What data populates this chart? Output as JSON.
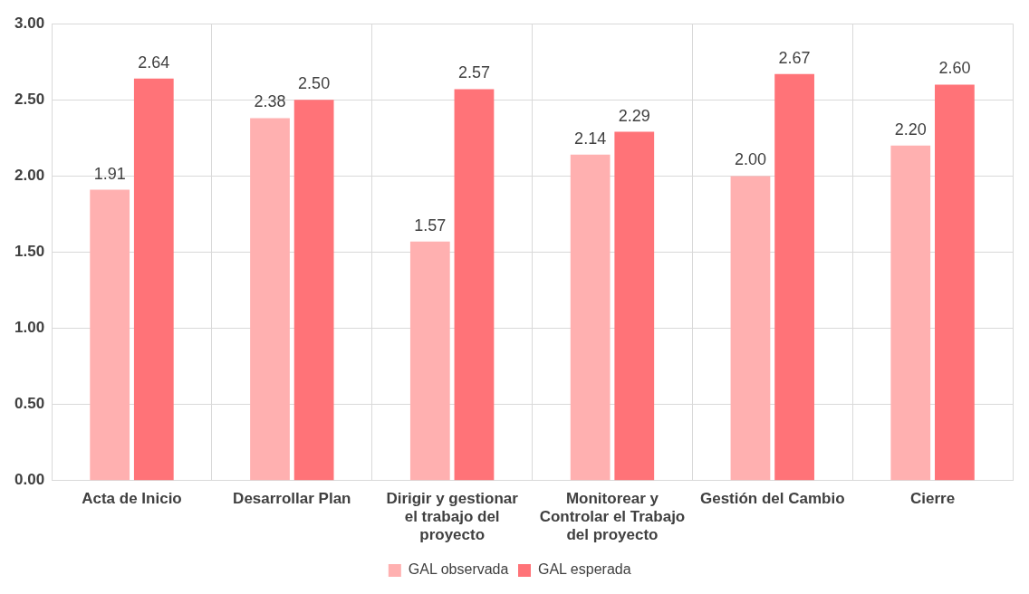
{
  "chart_data": {
    "type": "bar",
    "categories": [
      "Acta de Inicio",
      "Desarrollar Plan",
      "Dirigir y gestionar el trabajo del proyecto",
      "Monitorear y Controlar el Trabajo del proyecto",
      "Gestión del Cambio",
      "Cierre"
    ],
    "series": [
      {
        "name": "GAL observada",
        "color": "#ffb0b0",
        "values": [
          1.91,
          2.38,
          1.57,
          2.14,
          2.0,
          2.2
        ],
        "value_labels": [
          "1.91",
          "2.38",
          "1.57",
          "2.14",
          "2.00",
          "2.20"
        ]
      },
      {
        "name": "GAL esperada",
        "color": "#ff7378",
        "values": [
          2.64,
          2.5,
          2.57,
          2.29,
          2.67,
          2.6
        ],
        "value_labels": [
          "2.64",
          "2.50",
          "2.57",
          "2.29",
          "2.67",
          "2.60"
        ]
      }
    ],
    "ylim": [
      0,
      3
    ],
    "yticks": [
      {
        "value": 0,
        "label": "0.00"
      },
      {
        "value": 0.5,
        "label": "0.50"
      },
      {
        "value": 1,
        "label": "1.00"
      },
      {
        "value": 1.5,
        "label": "1.50"
      },
      {
        "value": 2,
        "label": "2.00"
      },
      {
        "value": 2.5,
        "label": "2.50"
      },
      {
        "value": 3,
        "label": "3.00"
      }
    ],
    "grid": true,
    "legend": "bottom"
  }
}
